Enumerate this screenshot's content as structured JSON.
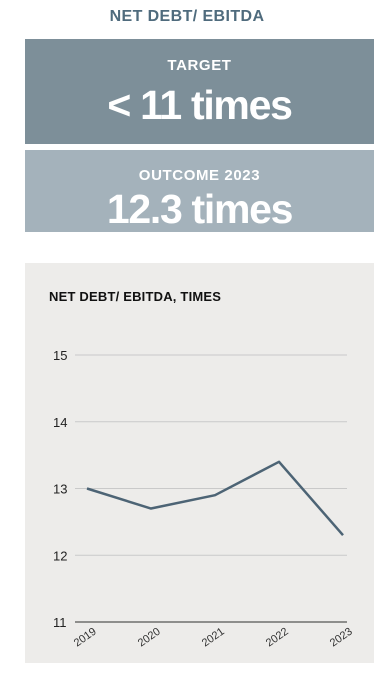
{
  "header": {
    "title": "NET DEBT/ EBITDA"
  },
  "target": {
    "label": "TARGET",
    "value": "< 11 times"
  },
  "outcome": {
    "label": "OUTCOME 2023",
    "value": "12.3 times"
  },
  "colors": {
    "title": "#4f6b7d",
    "target_bg": "#7d8f99",
    "outcome_bg": "#a4b2bb",
    "panel_bg": "#edecea",
    "line": "#4d6475",
    "grid": "#c9c9c9"
  },
  "chart_data": {
    "type": "line",
    "title": "NET DEBT/ EBITDA, TIMES",
    "xlabel": "",
    "ylabel": "",
    "categories": [
      "2019",
      "2020",
      "2021",
      "2022",
      "2023"
    ],
    "series": [
      {
        "values": [
          13.0,
          12.7,
          12.9,
          13.4,
          12.3
        ]
      }
    ],
    "yticks": [
      11,
      12,
      13,
      14,
      15
    ],
    "ylim": [
      11,
      15
    ],
    "grid": true
  }
}
